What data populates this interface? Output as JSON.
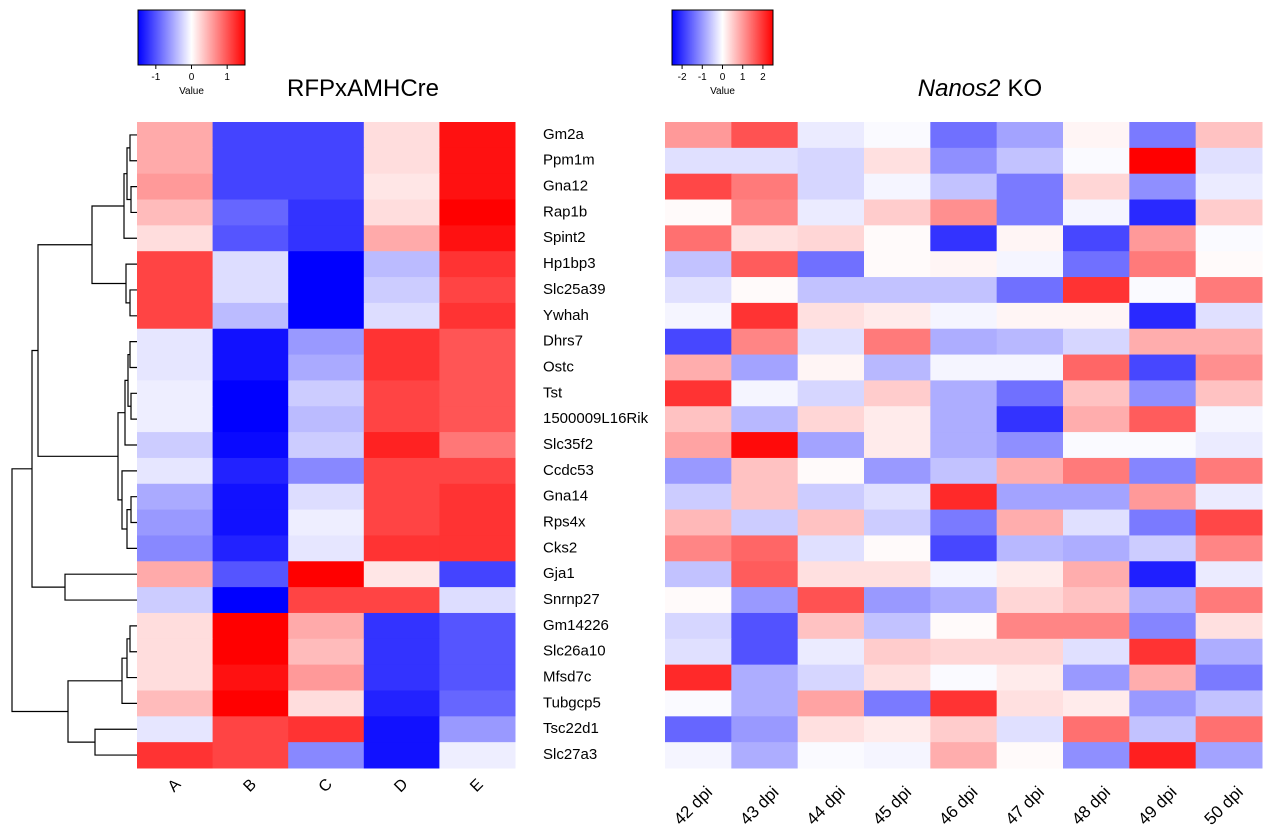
{
  "chart_data": [
    {
      "type": "heatmap",
      "title": "RFPxAMHCre",
      "x_categories": [
        "A",
        "B",
        "C",
        "D",
        "E"
      ],
      "y_categories": [
        "Gm2a",
        "Ppm1m",
        "Gna12",
        "Rap1b",
        "Spint2",
        "Hp1bp3",
        "Slc25a39",
        "Ywhah",
        "Dhrs7",
        "Ostc",
        "Tst",
        "1500009L16Rik",
        "Slc35f2",
        "Ccdc53",
        "Gna14",
        "Rps4x",
        "Cks2",
        "Gja1",
        "Snrnp27",
        "Gm14226",
        "Slc26a10",
        "Mfsd7c",
        "Tubgcp5",
        "Tsc22d1",
        "Slc27a3"
      ],
      "values": [
        [
          0.5,
          -1.1,
          -1.1,
          0.2,
          1.4
        ],
        [
          0.5,
          -1.1,
          -1.1,
          0.2,
          1.4
        ],
        [
          0.6,
          -1.1,
          -1.1,
          0.15,
          1.4
        ],
        [
          0.4,
          -0.9,
          -1.2,
          0.2,
          1.5
        ],
        [
          0.2,
          -1.0,
          -1.2,
          0.5,
          1.4
        ],
        [
          1.1,
          -0.2,
          -1.5,
          -0.4,
          1.2
        ],
        [
          1.1,
          -0.2,
          -1.5,
          -0.3,
          1.1
        ],
        [
          1.1,
          -0.4,
          -1.5,
          -0.2,
          1.2
        ],
        [
          -0.15,
          -1.4,
          -0.6,
          1.2,
          1.0
        ],
        [
          -0.15,
          -1.4,
          -0.5,
          1.2,
          1.0
        ],
        [
          -0.1,
          -1.5,
          -0.3,
          1.1,
          1.0
        ],
        [
          -0.1,
          -1.5,
          -0.4,
          1.1,
          1.0
        ],
        [
          -0.3,
          -1.45,
          -0.3,
          1.3,
          0.8
        ],
        [
          -0.15,
          -1.3,
          -0.7,
          1.1,
          1.1
        ],
        [
          -0.5,
          -1.4,
          -0.2,
          1.1,
          1.2
        ],
        [
          -0.6,
          -1.4,
          -0.1,
          1.1,
          1.2
        ],
        [
          -0.7,
          -1.3,
          -0.15,
          1.2,
          1.2
        ],
        [
          0.5,
          -1.0,
          1.5,
          0.15,
          -1.1
        ],
        [
          -0.3,
          -1.5,
          1.1,
          1.1,
          -0.2
        ],
        [
          0.2,
          1.5,
          0.5,
          -1.2,
          -1.0
        ],
        [
          0.2,
          1.5,
          0.4,
          -1.2,
          -1.0
        ],
        [
          0.2,
          1.4,
          0.6,
          -1.2,
          -1.0
        ],
        [
          0.4,
          1.5,
          0.2,
          -1.3,
          -0.9
        ],
        [
          -0.15,
          1.1,
          1.2,
          -1.4,
          -0.6
        ],
        [
          1.2,
          1.1,
          -0.7,
          -1.4,
          -0.1
        ]
      ],
      "zlim": [
        -1.5,
        1.5
      ],
      "zticks": [
        -1,
        0,
        1
      ],
      "colorbar_label": "Value",
      "colors": [
        "#0000ff",
        "#ffffff",
        "#ff0000"
      ]
    },
    {
      "type": "heatmap",
      "title": [
        "Nanos2",
        "KO"
      ],
      "title_italic": [
        true,
        false
      ],
      "x_categories": [
        "42 dpi",
        "43 dpi",
        "44 dpi",
        "45 dpi",
        "46 dpi",
        "47 dpi",
        "48 dpi",
        "49 dpi",
        "50 dpi"
      ],
      "values": [
        [
          1.0,
          1.7,
          -0.2,
          -0.05,
          -1.4,
          -0.9,
          0.1,
          -1.3,
          0.6
        ],
        [
          -0.3,
          -0.3,
          -0.4,
          0.3,
          -1.1,
          -0.6,
          -0.05,
          2.5,
          -0.3
        ],
        [
          1.8,
          1.3,
          -0.4,
          -0.1,
          -0.6,
          -1.3,
          0.4,
          -1.1,
          -0.2
        ],
        [
          0.05,
          1.2,
          -0.2,
          0.5,
          1.1,
          -1.3,
          -0.1,
          -2.1,
          0.5
        ],
        [
          1.4,
          0.3,
          0.4,
          0.05,
          -2.0,
          0.1,
          -1.8,
          1.0,
          -0.05
        ],
        [
          -0.6,
          1.6,
          -1.4,
          0.05,
          0.1,
          -0.1,
          -1.4,
          1.3,
          0.05
        ],
        [
          -0.3,
          0.05,
          -0.6,
          -0.6,
          -0.6,
          -1.4,
          2.0,
          -0.05,
          1.3
        ],
        [
          -0.1,
          2.0,
          0.3,
          0.2,
          -0.1,
          0.1,
          0.1,
          -2.1,
          -0.3
        ],
        [
          -1.8,
          1.2,
          -0.3,
          1.3,
          -0.8,
          -0.7,
          -0.4,
          0.8,
          0.8
        ],
        [
          0.8,
          -0.9,
          0.1,
          -0.7,
          -0.1,
          -0.1,
          1.5,
          -1.8,
          1.1
        ],
        [
          2.0,
          -0.1,
          -0.4,
          0.5,
          -0.8,
          -1.4,
          0.6,
          -1.1,
          0.6
        ],
        [
          0.6,
          -0.7,
          0.4,
          0.2,
          -0.8,
          -2.0,
          0.8,
          1.6,
          -0.1
        ],
        [
          0.9,
          2.4,
          -0.9,
          0.2,
          -0.8,
          -1.1,
          -0.05,
          -0.05,
          -0.2
        ],
        [
          -1.0,
          0.6,
          0.05,
          -1.0,
          -0.6,
          0.8,
          1.3,
          -1.2,
          1.3
        ],
        [
          -0.5,
          0.6,
          -0.5,
          -0.3,
          2.1,
          -0.9,
          -0.9,
          1.0,
          -0.2
        ],
        [
          0.7,
          -0.5,
          0.6,
          -0.5,
          -1.3,
          0.8,
          -0.3,
          -1.3,
          1.8
        ],
        [
          1.2,
          1.5,
          -0.3,
          0.05,
          -1.8,
          -0.7,
          -0.8,
          -0.5,
          1.2
        ],
        [
          -0.6,
          1.6,
          0.3,
          0.3,
          -0.1,
          0.2,
          0.8,
          -2.2,
          -0.2
        ],
        [
          0.05,
          -1.0,
          1.7,
          -1.0,
          -0.8,
          0.4,
          0.6,
          -0.8,
          1.3
        ],
        [
          -0.4,
          -1.7,
          0.6,
          -0.6,
          0.05,
          1.2,
          1.2,
          -1.2,
          0.3
        ],
        [
          -0.3,
          -1.7,
          -0.2,
          0.5,
          0.4,
          0.4,
          -0.3,
          2.0,
          -0.8
        ],
        [
          2.1,
          -0.8,
          -0.4,
          0.3,
          -0.05,
          0.2,
          -1.0,
          0.8,
          -1.3
        ],
        [
          -0.05,
          -0.8,
          0.9,
          -1.3,
          2.0,
          0.3,
          0.2,
          -1.0,
          -0.6
        ],
        [
          -1.5,
          -1.0,
          0.3,
          0.2,
          0.5,
          -0.3,
          1.4,
          -0.6,
          1.4
        ],
        [
          -0.1,
          -0.8,
          -0.05,
          -0.1,
          0.8,
          0.05,
          -1.1,
          2.2,
          -0.9
        ]
      ],
      "zlim": [
        -2.5,
        2.5
      ],
      "zticks": [
        -2,
        -1,
        0,
        1,
        2
      ],
      "colorbar_label": "Value",
      "colors": [
        "#0000ff",
        "#ffffff",
        "#ff0000"
      ]
    }
  ]
}
